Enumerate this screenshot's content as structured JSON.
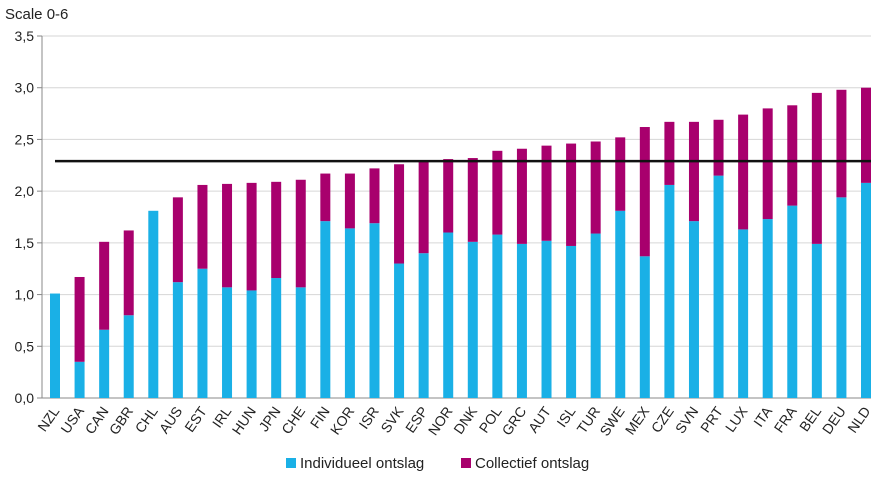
{
  "chart_data": {
    "type": "bar",
    "stacked": true,
    "scale_label": "Scale 0-6",
    "categories": [
      "NZL",
      "USA",
      "CAN",
      "GBR",
      "CHL",
      "AUS",
      "EST",
      "IRL",
      "HUN",
      "JPN",
      "CHE",
      "FIN",
      "KOR",
      "ISR",
      "SVK",
      "ESP",
      "NOR",
      "DNK",
      "POL",
      "GRC",
      "AUT",
      "ISL",
      "TUR",
      "SWE",
      "MEX",
      "CZE",
      "SVN",
      "PRT",
      "LUX",
      "ITA",
      "FRA",
      "BEL",
      "DEU",
      "NLD"
    ],
    "series": [
      {
        "name": "Individueel ontslag",
        "color": "#1ab0e6",
        "values": [
          1.01,
          0.35,
          0.66,
          0.8,
          1.81,
          1.12,
          1.25,
          1.07,
          1.04,
          1.16,
          1.07,
          1.71,
          1.64,
          1.69,
          1.3,
          1.4,
          1.6,
          1.51,
          1.58,
          1.49,
          1.52,
          1.47,
          1.59,
          1.81,
          1.37,
          2.06,
          1.71,
          2.15,
          1.63,
          1.73,
          1.86,
          1.49,
          1.94,
          2.08
        ]
      },
      {
        "name": "Collectief ontslag",
        "color": "#a8006d",
        "values": [
          0.0,
          0.82,
          0.85,
          0.82,
          0.0,
          0.82,
          0.81,
          1.0,
          1.04,
          0.93,
          1.04,
          0.46,
          0.53,
          0.53,
          0.96,
          0.89,
          0.71,
          0.81,
          0.81,
          0.92,
          0.92,
          0.99,
          0.89,
          0.71,
          1.25,
          0.61,
          0.96,
          0.54,
          1.11,
          1.07,
          0.97,
          1.46,
          1.04,
          0.92
        ]
      }
    ],
    "ylim": [
      0,
      3.5
    ],
    "yticks": [
      "0,0",
      "0,5",
      "1,0",
      "1,5",
      "2,0",
      "2,5",
      "3,0",
      "3,5"
    ],
    "reference_line": 2.29,
    "grid": true,
    "legend_position": "bottom"
  }
}
